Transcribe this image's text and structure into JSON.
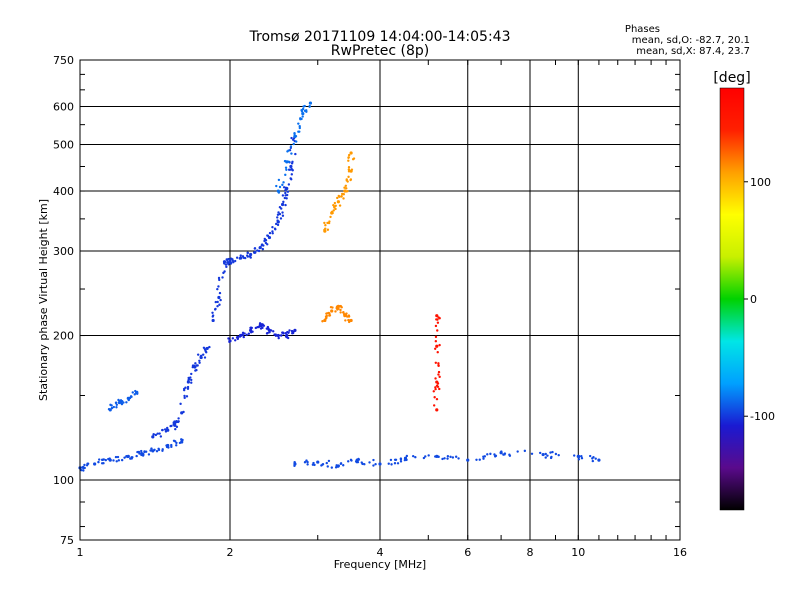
{
  "title_line1": "Tromsø 20171109 14:04:00-14:05:43",
  "title_line2": "RwPretec (8p)",
  "stats": {
    "label": "Phases",
    "o_line": "mean, sd,O: -82.7, 20.1",
    "x_line": "mean, sd,X: 87.4, 23.7"
  },
  "chart_data": {
    "type": "scatter",
    "xlabel": "Frequency [MHz]",
    "ylabel": "Stationary phase Virtual Height [km]",
    "x_scale": "log",
    "y_scale": "log",
    "xlim": [
      1,
      16
    ],
    "ylim": [
      75,
      750
    ],
    "x_ticks": [
      1,
      2,
      4,
      6,
      8,
      10,
      16
    ],
    "y_ticks": [
      75,
      100,
      200,
      300,
      400,
      500,
      600,
      750
    ],
    "grid": true,
    "colorbar": {
      "label": "[deg]",
      "range": [
        -180,
        180
      ],
      "ticks": [
        100,
        0,
        -100
      ],
      "colors": [
        "#000000",
        "#5a0a8c",
        "#1a1ad2",
        "#00a0ff",
        "#00e6e6",
        "#00d200",
        "#c8f000",
        "#ffff00",
        "#ffa000",
        "#ff2000",
        "#ff0000"
      ]
    },
    "traces": [
      {
        "name": "",
        "x": [
          1.0,
          1.07,
          1.15,
          1.25,
          1.33,
          1.4,
          1.5,
          1.6
        ],
        "y": [
          106,
          108,
          110,
          112,
          113,
          115,
          118,
          120
        ],
        "phase": -95
      },
      {
        "name": "",
        "x": [
          1.15,
          1.2,
          1.25,
          1.3
        ],
        "y": [
          140,
          145,
          148,
          152
        ],
        "phase": -90
      },
      {
        "name": "",
        "x": [
          1.4,
          1.5,
          1.55,
          1.6,
          1.65,
          1.7,
          1.75,
          1.8
        ],
        "y": [
          123,
          127,
          130,
          138,
          160,
          172,
          180,
          188
        ],
        "phase": -100
      },
      {
        "name": "",
        "x": [
          1.85,
          1.9,
          1.95,
          2.0,
          2.1,
          2.2,
          2.3,
          2.4,
          2.5,
          2.55,
          2.6,
          2.65,
          2.7
        ],
        "y": [
          215,
          240,
          285,
          285,
          290,
          295,
          305,
          320,
          345,
          375,
          405,
          450,
          520
        ],
        "phase": -100
      },
      {
        "name": "",
        "x": [
          2.5,
          2.6,
          2.7,
          2.8,
          2.9
        ],
        "y": [
          400,
          460,
          520,
          580,
          610
        ],
        "phase": -85
      },
      {
        "name": "",
        "x": [
          2.0,
          2.1,
          2.2,
          2.3,
          2.4,
          2.5,
          2.6,
          2.7
        ],
        "y": [
          195,
          200,
          205,
          210,
          205,
          200,
          200,
          205
        ],
        "phase": -105
      },
      {
        "name": "",
        "x": [
          3.1,
          3.2,
          3.3,
          3.4,
          3.5,
          3.5
        ],
        "y": [
          330,
          360,
          380,
          400,
          440,
          480
        ],
        "phase": 110
      },
      {
        "name": "",
        "x": [
          3.1,
          3.2,
          3.3,
          3.4,
          3.5
        ],
        "y": [
          215,
          225,
          230,
          220,
          215
        ],
        "phase": 115
      },
      {
        "name": "",
        "x": [
          2.7,
          3.0,
          3.3,
          3.6,
          4.0,
          4.5,
          5.2,
          6.0,
          7.0,
          8.5,
          10.0,
          11.0
        ],
        "y": [
          108,
          109,
          107,
          110,
          108,
          111,
          112,
          110,
          114,
          113,
          112,
          110
        ],
        "phase": -95
      },
      {
        "name": "",
        "x": [
          5.2,
          5.2,
          5.2,
          5.2
        ],
        "y": [
          140,
          160,
          190,
          220
        ],
        "phase": 160
      }
    ]
  }
}
